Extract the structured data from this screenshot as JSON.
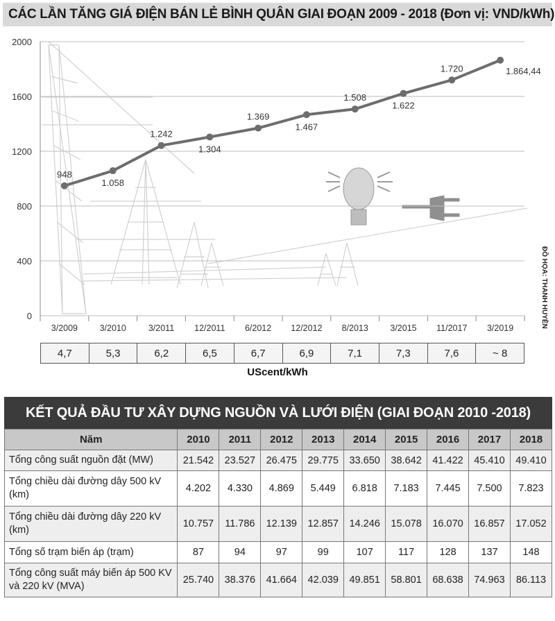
{
  "title": "CÁC LẦN TĂNG GIÁ ĐIỆN BÁN LẺ BÌNH QUÂN GIAI ĐOẠN 2009 - 2018 (Đơn vị: VND/kWh)",
  "credit": "ĐỒ HỌA: THANH HUYỀN",
  "chart_data": {
    "type": "line",
    "categories": [
      "3/2009",
      "3/2010",
      "3/2011",
      "12/2011",
      "6/2012",
      "12/2012",
      "8/2013",
      "3/2015",
      "11/2017",
      "3/2019"
    ],
    "values": [
      948,
      1058,
      1242,
      1304,
      1369,
      1467,
      1508,
      1622,
      1720,
      1864.44
    ],
    "data_labels": [
      "948",
      "1.058",
      "1.242",
      "1.304",
      "1.369",
      "1.467",
      "1.508",
      "1.622",
      "1.720",
      "1.864,44"
    ],
    "ylim": [
      0,
      2000
    ],
    "yticks": [
      "0",
      "400",
      "800",
      "1200",
      "1600",
      "2000"
    ],
    "grid": true,
    "line_color": "#6d6d6d"
  },
  "uscent": {
    "values": [
      "4,7",
      "5,3",
      "6,2",
      "6,5",
      "6,7",
      "6,9",
      "7,1",
      "7,3",
      "7,6",
      "~ 8"
    ],
    "label": "UScent/kWh"
  },
  "table": {
    "title": "KẾT QUẢ ĐẦU TƯ XÂY DỰNG NGUỒN VÀ LƯỚI ĐIỆN (GIAI ĐOẠN 2010 -2018)",
    "header_label": "Năm",
    "years": [
      "2010",
      "2011",
      "2012",
      "2013",
      "2014",
      "2015",
      "2016",
      "2017",
      "2018"
    ],
    "rows": [
      {
        "label": "Tổng công suất nguồn đặt (MW)",
        "values": [
          "21.542",
          "23.527",
          "26.475",
          "29.775",
          "33.650",
          "38.642",
          "41.422",
          "45.410",
          "49.410"
        ]
      },
      {
        "label": "Tổng chiều dài đường dây 500 kV (km)",
        "values": [
          "4.202",
          "4.330",
          "4.869",
          "5.449",
          "6.818",
          "7.183",
          "7.445",
          "7.500",
          "7.823"
        ]
      },
      {
        "label": "Tổng chiều dài đường dây 220 kV (km)",
        "values": [
          "10.757",
          "11.786",
          "12.139",
          "12.857",
          "14.246",
          "15.078",
          "16.070",
          "16.857",
          "17.052"
        ]
      },
      {
        "label": "Tổng số trạm biến áp (trạm)",
        "values": [
          "87",
          "94",
          "97",
          "99",
          "107",
          "117",
          "128",
          "137",
          "148"
        ]
      },
      {
        "label": "Tổng công suất máy biến áp 500 KV và 220 kV (MVA)",
        "values": [
          "25.740",
          "38.376",
          "41.664",
          "42.039",
          "49.851",
          "58.801",
          "68.638",
          "74.963",
          "86.113"
        ]
      }
    ]
  }
}
